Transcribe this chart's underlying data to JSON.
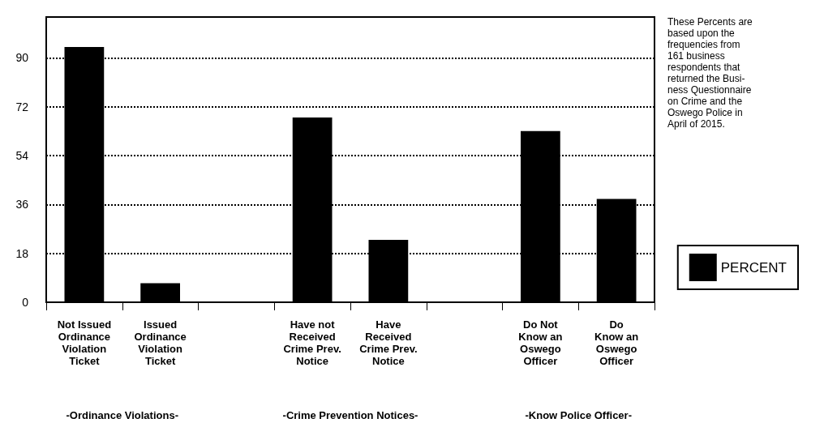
{
  "chart_data": {
    "type": "bar",
    "categories": [
      "Not Issued\nOrdinance\nViolation\nTicket",
      "Issued\nOrdinance\nViolation\nTicket",
      null,
      "Have not\nReceived\nCrime Prev.\nNotice",
      "Have\nReceived\nCrime Prev.\nNotice",
      null,
      "Do Not\nKnow an\nOswego\nOfficer",
      "Do\nKnow an\nOswego\nOfficer"
    ],
    "series": [
      {
        "name": "PERCENT",
        "color": "#000000",
        "values": [
          94,
          7,
          null,
          68,
          23,
          null,
          63,
          38
        ]
      }
    ],
    "ylim": [
      0,
      105
    ],
    "yticks": [
      0,
      18,
      36,
      54,
      72,
      90
    ],
    "grid": "y",
    "legend": "right",
    "annotations": [
      "These Percents are\nbased upon the\nfrequencies from\n161 business\nrespondents that\nreturned the Busi-\nness Questionnaire\non Crime and the\nOswego Police in\nApril of 2015.",
      "-Ordinance Violations-",
      "-Crime Prevention Notices-",
      "-Know Police Officer-"
    ]
  }
}
